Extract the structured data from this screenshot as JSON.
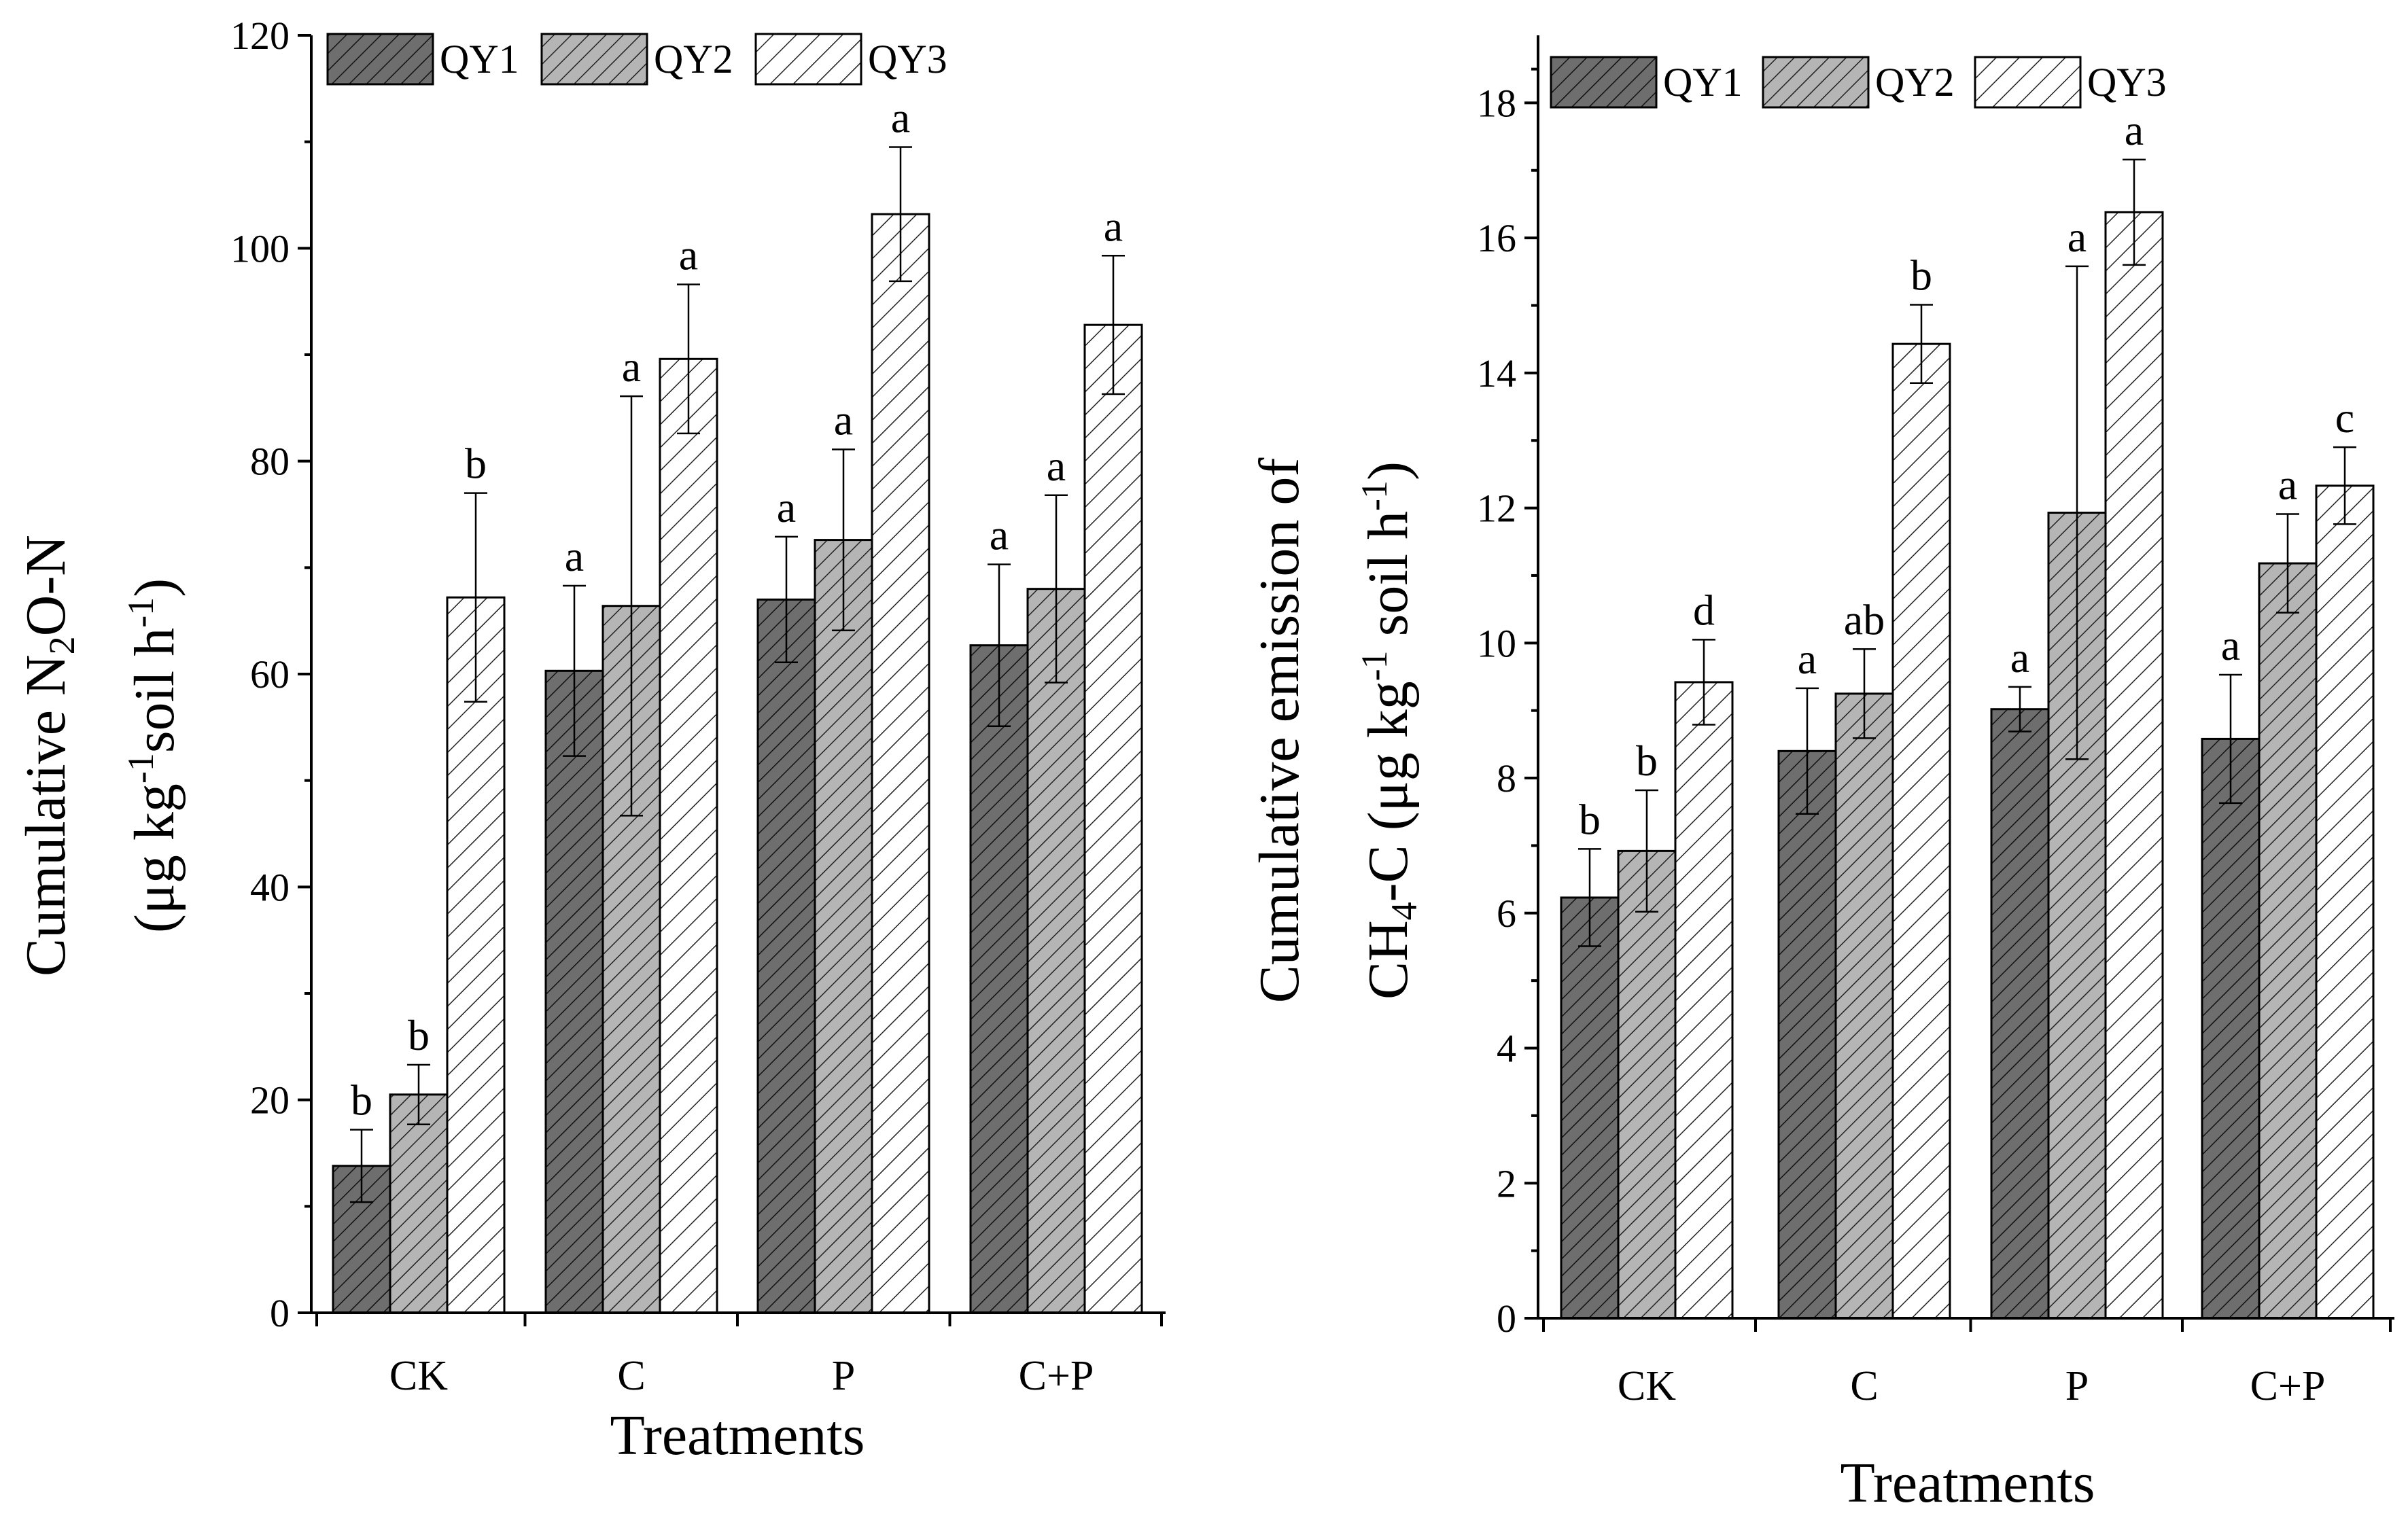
{
  "chart_data": [
    {
      "type": "bar",
      "categories": [
        "CK",
        "C",
        "P",
        "C+P"
      ],
      "series": [
        {
          "name": "QY1",
          "values": [
            13.8,
            60.3,
            67.0,
            62.7
          ],
          "errors": [
            3.4,
            8.0,
            5.9,
            7.6
          ],
          "letters": [
            "b",
            "a",
            "a",
            "a"
          ],
          "color": "#6e6e6e"
        },
        {
          "name": "QY2",
          "values": [
            20.5,
            66.4,
            72.6,
            68.0
          ],
          "errors": [
            2.8,
            19.7,
            8.5,
            8.8
          ],
          "letters": [
            "b",
            "a",
            "a",
            "a"
          ],
          "color": "#b3b3b3"
        },
        {
          "name": "QY3",
          "values": [
            67.2,
            89.6,
            103.2,
            92.8
          ],
          "errors": [
            9.8,
            7.0,
            6.3,
            6.5
          ],
          "letters": [
            "b",
            "a",
            "a",
            "a"
          ],
          "color": "#ffffff"
        }
      ],
      "xlabel": "Treatments",
      "ylabel_main": "Cumulative N",
      "ylabel_sub": "2",
      "ylabel_tail": "O-N",
      "ylabel2_a": "(μg kg",
      "ylabel2_sup": "-1",
      "ylabel2_b": "soil h",
      "ylabel2_sup2": "-1",
      "ylabel2_c": ")",
      "ylim": [
        0,
        120
      ],
      "yticks": [
        0,
        20,
        40,
        60,
        80,
        100,
        120
      ],
      "legend": "top-left",
      "grid": false
    },
    {
      "type": "bar",
      "categories": [
        "CK",
        "C",
        "P",
        "C+P"
      ],
      "series": [
        {
          "name": "QY1",
          "values": [
            6.23,
            8.4,
            9.02,
            8.58
          ],
          "errors": [
            0.72,
            0.93,
            0.33,
            0.95
          ],
          "letters": [
            "b",
            "a",
            "a",
            "a"
          ],
          "color": "#6e6e6e"
        },
        {
          "name": "QY2",
          "values": [
            6.92,
            9.25,
            11.93,
            11.18
          ],
          "errors": [
            0.9,
            0.66,
            3.65,
            0.73
          ],
          "letters": [
            "b",
            "ab",
            "a",
            "a"
          ],
          "color": "#b3b3b3"
        },
        {
          "name": "QY3",
          "values": [
            9.42,
            14.43,
            16.38,
            12.33
          ],
          "errors": [
            0.63,
            0.58,
            0.78,
            0.57
          ],
          "letters": [
            "d",
            "b",
            "a",
            "c"
          ],
          "color": "#ffffff"
        }
      ],
      "xlabel": "Treatments",
      "ylabel_main": "Cumulative emission of",
      "ylabel2_a": "CH",
      "ylabel2_sub": "4",
      "ylabel2_b": "-C (μg kg",
      "ylabel2_sup": "-1",
      "ylabel2_c": " soil h",
      "ylabel2_sup2": "-1",
      "ylabel2_d": ")",
      "ylim": [
        0,
        19
      ],
      "yticks": [
        0,
        2,
        4,
        6,
        8,
        10,
        12,
        14,
        16,
        18
      ],
      "legend": "top-left",
      "grid": false
    }
  ]
}
